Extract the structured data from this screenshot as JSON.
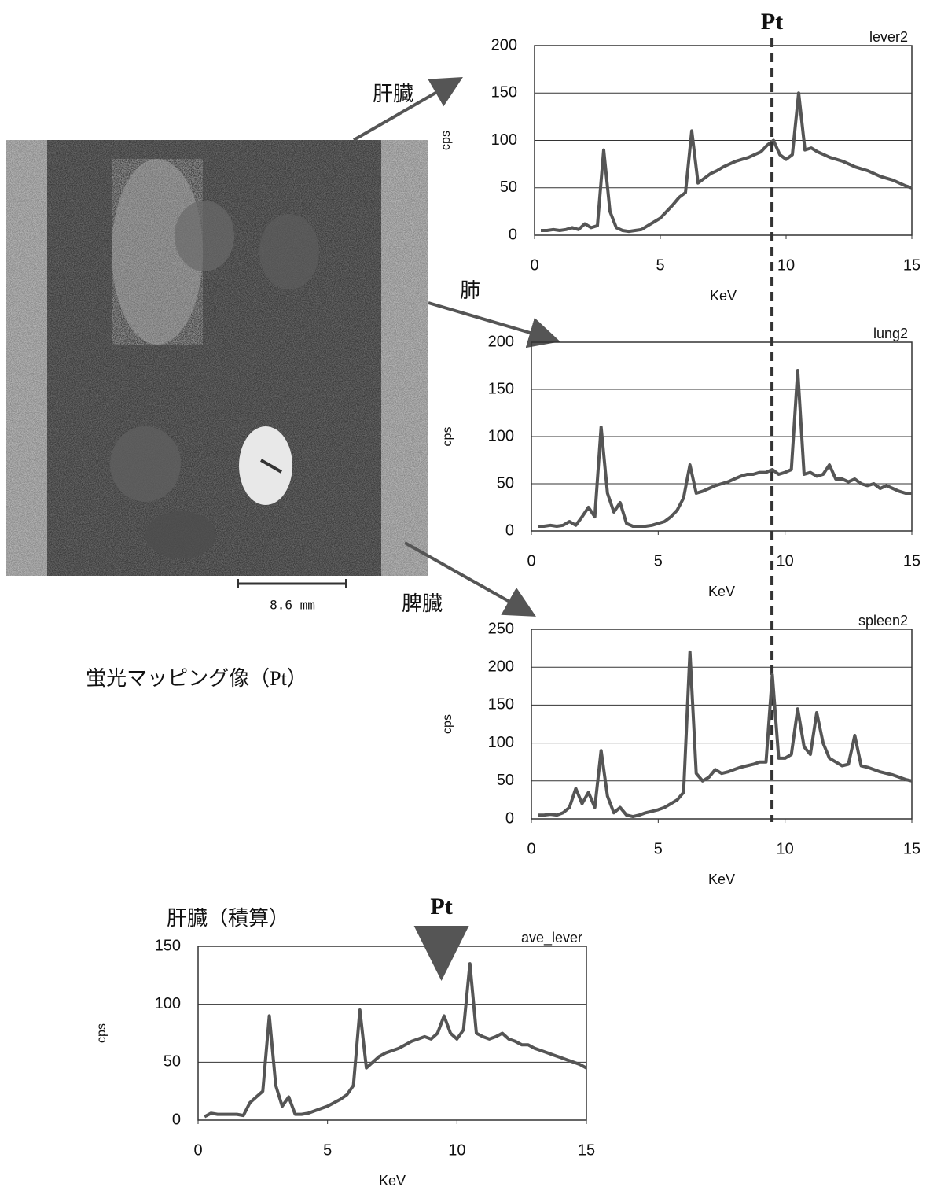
{
  "figure": {
    "organ_labels": [
      "肝臓",
      "肺",
      "脾臓"
    ],
    "scale_bar": "8.6 mm",
    "caption": "蛍光マッピング像（Pt）",
    "integrated_label": "肝臓（積算）"
  },
  "chart_data": [
    {
      "type": "line",
      "xlabel": "KeV",
      "ylabel": "cps",
      "grid": true,
      "xlim": [
        0,
        15
      ],
      "xticks": [
        0,
        5,
        10,
        15
      ],
      "ylim": [
        0,
        200
      ],
      "yticks": [
        0,
        50,
        100,
        150,
        200
      ],
      "annotations": [
        {
          "text": "Pt",
          "x": 9.44
        }
      ],
      "x": [
        0.25,
        0.5,
        0.75,
        1,
        1.25,
        1.5,
        1.75,
        2,
        2.25,
        2.5,
        2.75,
        3,
        3.25,
        3.5,
        3.75,
        4,
        4.25,
        4.5,
        4.75,
        5,
        5.25,
        5.5,
        5.75,
        6,
        6.25,
        6.5,
        6.75,
        7,
        7.25,
        7.5,
        7.75,
        8,
        8.25,
        8.5,
        8.75,
        9,
        9.25,
        9.5,
        9.75,
        10,
        10.25,
        10.5,
        10.75,
        11,
        11.25,
        11.5,
        11.75,
        12,
        12.25,
        12.5,
        12.75,
        13,
        13.25,
        13.5,
        13.75,
        14,
        14.25,
        14.5,
        14.75,
        15
      ],
      "series": [
        {
          "name": "lever2",
          "color": "#555555",
          "values": [
            5,
            5,
            6,
            5,
            6,
            8,
            6,
            12,
            8,
            10,
            90,
            25,
            8,
            5,
            4,
            5,
            6,
            10,
            14,
            18,
            25,
            32,
            40,
            45,
            110,
            55,
            60,
            65,
            68,
            72,
            75,
            78,
            80,
            82,
            85,
            88,
            95,
            100,
            85,
            80,
            85,
            150,
            90,
            92,
            88,
            85,
            82,
            80,
            78,
            75,
            72,
            70,
            68,
            65,
            62,
            60,
            58,
            55,
            52,
            50
          ]
        }
      ]
    },
    {
      "type": "line",
      "xlabel": "KeV",
      "ylabel": "cps",
      "grid": true,
      "xlim": [
        0,
        15
      ],
      "xticks": [
        0,
        5,
        10,
        15
      ],
      "ylim": [
        0,
        200
      ],
      "yticks": [
        0,
        50,
        100,
        150,
        200
      ],
      "x": [
        0.25,
        0.5,
        0.75,
        1,
        1.25,
        1.5,
        1.75,
        2,
        2.25,
        2.5,
        2.75,
        3,
        3.25,
        3.5,
        3.75,
        4,
        4.25,
        4.5,
        4.75,
        5,
        5.25,
        5.5,
        5.75,
        6,
        6.25,
        6.5,
        6.75,
        7,
        7.25,
        7.5,
        7.75,
        8,
        8.25,
        8.5,
        8.75,
        9,
        9.25,
        9.5,
        9.75,
        10,
        10.25,
        10.5,
        10.75,
        11,
        11.25,
        11.5,
        11.75,
        12,
        12.25,
        12.5,
        12.75,
        13,
        13.25,
        13.5,
        13.75,
        14,
        14.25,
        14.5,
        14.75,
        15
      ],
      "series": [
        {
          "name": "lung2",
          "color": "#555555",
          "values": [
            5,
            5,
            6,
            5,
            6,
            10,
            6,
            15,
            25,
            15,
            110,
            40,
            20,
            30,
            8,
            5,
            5,
            5,
            6,
            8,
            10,
            15,
            22,
            35,
            70,
            40,
            42,
            45,
            48,
            50,
            52,
            55,
            58,
            60,
            60,
            62,
            62,
            65,
            60,
            62,
            65,
            170,
            60,
            62,
            58,
            60,
            70,
            55,
            55,
            52,
            55,
            50,
            48,
            50,
            45,
            48,
            45,
            42,
            40,
            40
          ]
        }
      ]
    },
    {
      "type": "line",
      "xlabel": "KeV",
      "ylabel": "cps",
      "grid": true,
      "xlim": [
        0,
        15
      ],
      "xticks": [
        0,
        5,
        10,
        15
      ],
      "ylim": [
        0,
        250
      ],
      "yticks": [
        0,
        50,
        100,
        150,
        200,
        250
      ],
      "x": [
        0.25,
        0.5,
        0.75,
        1,
        1.25,
        1.5,
        1.75,
        2,
        2.25,
        2.5,
        2.75,
        3,
        3.25,
        3.5,
        3.75,
        4,
        4.25,
        4.5,
        4.75,
        5,
        5.25,
        5.5,
        5.75,
        6,
        6.25,
        6.5,
        6.75,
        7,
        7.25,
        7.5,
        7.75,
        8,
        8.25,
        8.5,
        8.75,
        9,
        9.25,
        9.5,
        9.75,
        10,
        10.25,
        10.5,
        10.75,
        11,
        11.25,
        11.5,
        11.75,
        12,
        12.25,
        12.5,
        12.75,
        13,
        13.25,
        13.5,
        13.75,
        14,
        14.25,
        14.5,
        14.75,
        15
      ],
      "series": [
        {
          "name": "spleen2",
          "color": "#555555",
          "values": [
            5,
            5,
            6,
            5,
            8,
            15,
            40,
            20,
            35,
            15,
            90,
            30,
            8,
            15,
            5,
            3,
            5,
            8,
            10,
            12,
            15,
            20,
            25,
            35,
            220,
            60,
            50,
            55,
            65,
            60,
            62,
            65,
            68,
            70,
            72,
            75,
            75,
            190,
            80,
            80,
            85,
            145,
            95,
            85,
            140,
            100,
            80,
            75,
            70,
            72,
            110,
            70,
            68,
            65,
            62,
            60,
            58,
            55,
            52,
            50
          ]
        }
      ]
    },
    {
      "type": "line",
      "xlabel": "KeV",
      "ylabel": "cps",
      "grid": true,
      "xlim": [
        0,
        15
      ],
      "xticks": [
        0,
        5,
        10,
        15
      ],
      "ylim": [
        0,
        150
      ],
      "yticks": [
        0,
        50,
        100,
        150
      ],
      "annotations": [
        {
          "text": "Pt",
          "x": 9.4
        }
      ],
      "x": [
        0.25,
        0.5,
        0.75,
        1,
        1.25,
        1.5,
        1.75,
        2,
        2.25,
        2.5,
        2.75,
        3,
        3.25,
        3.5,
        3.75,
        4,
        4.25,
        4.5,
        4.75,
        5,
        5.25,
        5.5,
        5.75,
        6,
        6.25,
        6.5,
        6.75,
        7,
        7.25,
        7.5,
        7.75,
        8,
        8.25,
        8.5,
        8.75,
        9,
        9.25,
        9.5,
        9.75,
        10,
        10.25,
        10.5,
        10.75,
        11,
        11.25,
        11.5,
        11.75,
        12,
        12.25,
        12.5,
        12.75,
        13,
        13.25,
        13.5,
        13.75,
        14,
        14.25,
        14.5,
        14.75,
        15
      ],
      "series": [
        {
          "name": "ave_lever",
          "color": "#555555",
          "values": [
            3,
            6,
            5,
            5,
            5,
            5,
            4,
            15,
            20,
            25,
            90,
            30,
            12,
            20,
            5,
            5,
            6,
            8,
            10,
            12,
            15,
            18,
            22,
            30,
            95,
            45,
            50,
            55,
            58,
            60,
            62,
            65,
            68,
            70,
            72,
            70,
            75,
            90,
            75,
            70,
            78,
            135,
            75,
            72,
            70,
            72,
            75,
            70,
            68,
            65,
            65,
            62,
            60,
            58,
            56,
            54,
            52,
            50,
            48,
            45
          ]
        }
      ]
    }
  ]
}
